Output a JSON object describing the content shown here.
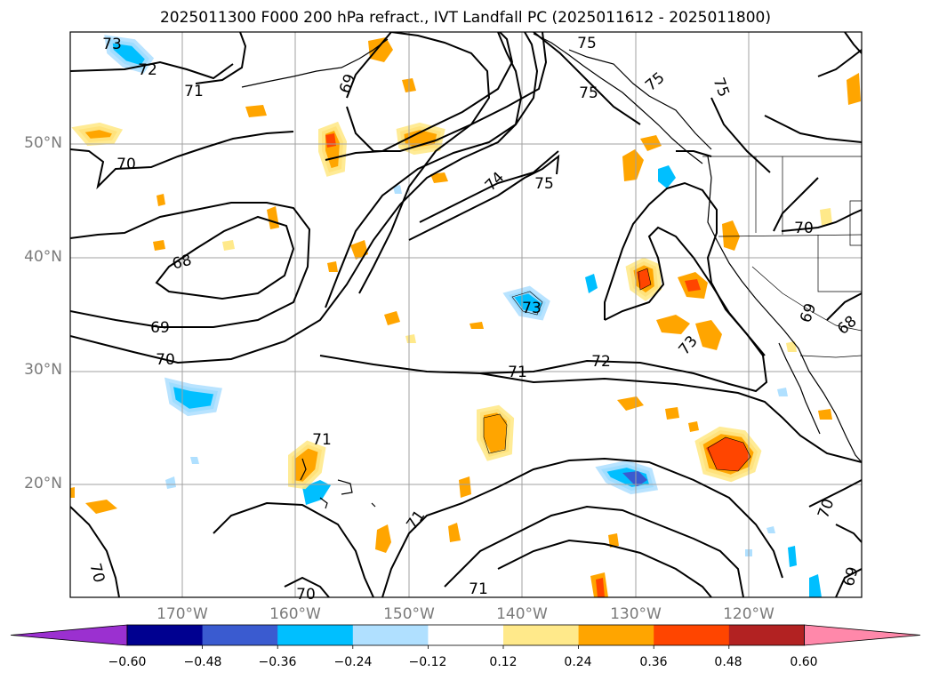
{
  "title": "2025011300 F000 200 hPa refract., IVT Landfall PC (2025011612 - 2025011800)",
  "lat_labels": [
    "50°N",
    "40°N",
    "30°N",
    "20°N"
  ],
  "lon_labels": [
    "170°W",
    "160°W",
    "150°W",
    "140°W",
    "130°W",
    "120°W"
  ],
  "contour_labels": [
    "73",
    "72",
    "71",
    "69",
    "75",
    "75",
    "75",
    "75",
    "70",
    "74",
    "75",
    "68",
    "69",
    "70",
    "73",
    "71",
    "72",
    "73",
    "70",
    "69",
    "68",
    "71",
    "71",
    "71",
    "70",
    "70",
    "70",
    "69"
  ],
  "colorbar": {
    "colors": [
      "#9b30d0",
      "#000090",
      "#3a5bd0",
      "#00bfff",
      "#b0e0ff",
      "#ffffff",
      "#ffe98a",
      "#ffa500",
      "#ff4500",
      "#b22222",
      "#ff88aa"
    ],
    "ticks": [
      "−0.60",
      "−0.48",
      "−0.36",
      "−0.24",
      "−0.12",
      "0.12",
      "0.24",
      "0.36",
      "0.48",
      "0.60"
    ]
  },
  "colors": {
    "grid": "#a0a0a0",
    "contour": "#000000",
    "tick_label": "#7a7a7a"
  }
}
